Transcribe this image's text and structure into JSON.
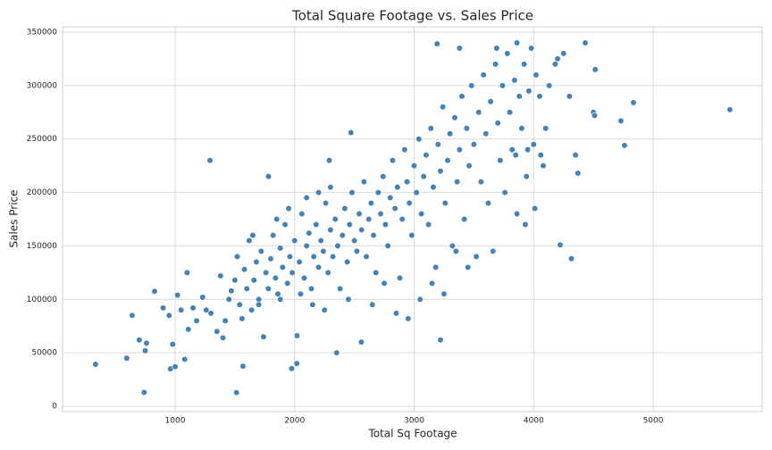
{
  "chart_data": {
    "type": "scatter",
    "title": "Total Square Footage vs. Sales Price",
    "xlabel": "Total Sq Footage",
    "ylabel": "Sales Price",
    "xlim": [
      58,
      5912
    ],
    "ylim": [
      -5000,
      355000
    ],
    "xticks": [
      1000,
      2000,
      3000,
      4000,
      5000
    ],
    "yticks": [
      0,
      50000,
      100000,
      150000,
      200000,
      250000,
      300000,
      350000
    ],
    "grid": true,
    "color": "#4682b4",
    "x": [
      334,
      5642,
      4835,
      4730,
      4760,
      4316,
      4222,
      741,
      1513,
      1292,
      2471,
      3192,
      3860,
      4432,
      4515,
      595,
      640,
      961,
      1568,
      1975,
      2018,
      2351,
      2558,
      3220,
      828,
      1100,
      1781,
      2290,
      3380,
      3690,
      3930,
      4010,
      4080,
      700,
      750,
      760,
      900,
      950,
      980,
      1000,
      1020,
      1050,
      1080,
      1110,
      1150,
      1180,
      1230,
      1260,
      1300,
      1350,
      1380,
      1400,
      1420,
      1450,
      1470,
      1500,
      1520,
      1540,
      1560,
      1580,
      1600,
      1620,
      1640,
      1660,
      1680,
      1700,
      1720,
      1740,
      1760,
      1780,
      1800,
      1820,
      1840,
      1860,
      1880,
      1900,
      1920,
      1940,
      1960,
      1980,
      2000,
      2020,
      2040,
      2060,
      2080,
      2100,
      2120,
      2140,
      2160,
      2180,
      2200,
      2220,
      2240,
      2260,
      2280,
      2300,
      2320,
      2340,
      2360,
      2380,
      2400,
      2420,
      2440,
      2460,
      2480,
      2500,
      2520,
      2540,
      2560,
      2580,
      2600,
      2620,
      2640,
      2660,
      2680,
      2700,
      2720,
      2740,
      2760,
      2780,
      2800,
      2820,
      2840,
      2860,
      2880,
      2900,
      2920,
      2940,
      2960,
      2980,
      3000,
      3020,
      3040,
      3060,
      3080,
      3100,
      3120,
      3140,
      3160,
      3180,
      3200,
      3220,
      3240,
      3260,
      3280,
      3300,
      3320,
      3340,
      3360,
      3380,
      3400,
      3420,
      3440,
      3460,
      3480,
      3500,
      3520,
      3540,
      3560,
      3580,
      3600,
      3620,
      3640,
      3660,
      3680,
      3700,
      3720,
      3740,
      3760,
      3780,
      3800,
      3820,
      3840,
      3860,
      3880,
      3900,
      3920,
      3940,
      3960,
      3980,
      4000,
      4020,
      4050,
      4100,
      4130,
      4180,
      4250,
      4300,
      4350,
      4370,
      4500,
      4510,
      4200,
      4060,
      3950,
      3850,
      1700,
      1880,
      2050,
      2150,
      2250,
      2450,
      2650,
      2750,
      2850,
      2950,
      3050,
      3150,
      3250,
      3350,
      3450,
      1650,
      1850,
      2100,
      2300,
      1950,
      2200
    ],
    "values": [
      39300,
      277500,
      284000,
      267000,
      244000,
      138000,
      151000,
      13000,
      12800,
      230000,
      256000,
      339000,
      340000,
      340000,
      315000,
      45000,
      85000,
      35000,
      37500,
      35300,
      40000,
      50000,
      60000,
      62000,
      107500,
      125000,
      215000,
      230000,
      335000,
      335000,
      170000,
      185000,
      225000,
      62000,
      52000,
      59000,
      92000,
      85000,
      58000,
      37000,
      104000,
      90000,
      44000,
      72000,
      92000,
      80000,
      102000,
      90000,
      87000,
      70000,
      122000,
      64000,
      80000,
      100000,
      108000,
      118000,
      140000,
      95000,
      82000,
      128000,
      110000,
      155000,
      90000,
      118000,
      135000,
      100000,
      145000,
      65000,
      125000,
      110000,
      138000,
      160000,
      120000,
      105000,
      148000,
      130000,
      170000,
      115000,
      140000,
      125000,
      155000,
      66000,
      135000,
      180000,
      120000,
      150000,
      162000,
      110000,
      140000,
      170000,
      130000,
      155000,
      145000,
      190000,
      125000,
      165000,
      140000,
      175000,
      150000,
      110000,
      160000,
      185000,
      135000,
      170000,
      200000,
      155000,
      145000,
      180000,
      165000,
      210000,
      140000,
      175000,
      190000,
      160000,
      125000,
      200000,
      180000,
      215000,
      170000,
      150000,
      195000,
      230000,
      185000,
      205000,
      120000,
      175000,
      240000,
      210000,
      190000,
      160000,
      225000,
      200000,
      250000,
      180000,
      215000,
      235000,
      170000,
      260000,
      205000,
      130000,
      245000,
      220000,
      280000,
      190000,
      230000,
      255000,
      150000,
      270000,
      210000,
      240000,
      290000,
      175000,
      260000,
      225000,
      300000,
      245000,
      140000,
      275000,
      210000,
      310000,
      255000,
      190000,
      285000,
      145000,
      320000,
      265000,
      230000,
      300000,
      200000,
      330000,
      275000,
      240000,
      305000,
      180000,
      290000,
      260000,
      320000,
      215000,
      295000,
      335000,
      245000,
      310000,
      290000,
      260000,
      300000,
      320000,
      330000,
      290000,
      235000,
      218000,
      275000,
      272000,
      325000,
      235000,
      240000,
      235000,
      95000,
      100000,
      105000,
      95000,
      90000,
      100000,
      95000,
      115000,
      87000,
      82000,
      100000,
      115000,
      105000,
      145000,
      130000,
      160000,
      175000,
      195000,
      205000,
      185000,
      200000
    ]
  }
}
